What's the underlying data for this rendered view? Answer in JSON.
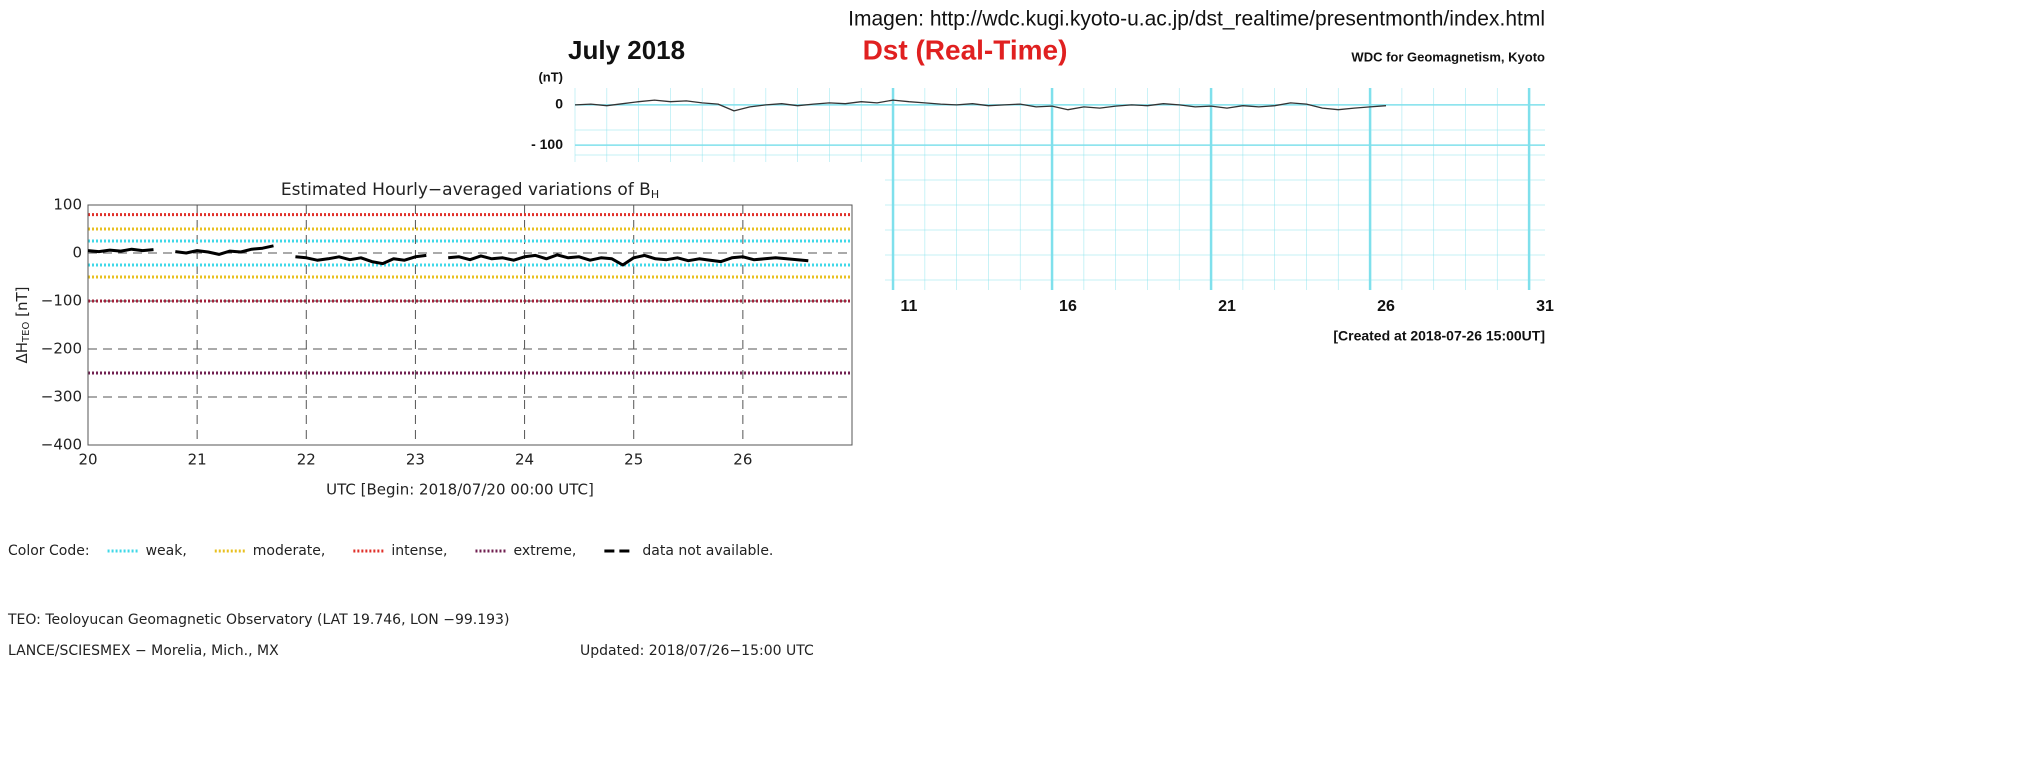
{
  "source": "Imagen: http://wdc.kugi.kyoto-u.ac.jp/dst_realtime/presentmonth/index.html",
  "chart_data": [
    {
      "type": "line",
      "title": "Dst (Real-Time)",
      "subtitle": "July  2018",
      "credit": "WDC for Geomagnetism, Kyoto",
      "ylabel": "(nT)",
      "note": "[Created at 2018-07-26 15:00UT]",
      "xlim": [
        1,
        31.5
      ],
      "xticks": [
        11,
        16,
        21,
        26,
        31
      ],
      "ylim": [
        -460,
        42
      ],
      "yticks": [
        0,
        {
          "value": -100,
          "label": "- 100"
        }
      ],
      "grid": true,
      "grid_color": "#7fe0ec",
      "series": [
        {
          "color": "#333333",
          "x": [
            1,
            1.5,
            2,
            2.5,
            3,
            3.5,
            4,
            4.5,
            5,
            5.5,
            6,
            6.5,
            7,
            7.5,
            8,
            8.5,
            9,
            9.5,
            10,
            10.5,
            11,
            11.5,
            12,
            12.5,
            13,
            13.5,
            14,
            14.5,
            15,
            15.5,
            16,
            16.5,
            17,
            17.5,
            18,
            18.5,
            19,
            19.5,
            20,
            20.5,
            21,
            21.5,
            22,
            22.5,
            23,
            23.5,
            24,
            24.5,
            25,
            25.5,
            26,
            26.5
          ],
          "values": [
            0,
            2,
            -2,
            3,
            8,
            12,
            8,
            10,
            5,
            2,
            -15,
            -5,
            0,
            3,
            -2,
            2,
            5,
            3,
            8,
            5,
            12,
            8,
            5,
            2,
            0,
            3,
            -2,
            0,
            2,
            -5,
            -3,
            -12,
            -5,
            -8,
            -3,
            0,
            -2,
            3,
            0,
            -5,
            -3,
            -8,
            -2,
            -5,
            -2,
            5,
            2,
            -8,
            -12,
            -8,
            -5,
            -2
          ]
        }
      ]
    },
    {
      "type": "line",
      "title": "Estimated Hourly−averaged variations of B",
      "title_subscript": "H",
      "ylabel": "ΔH",
      "ylabel_subscript": "TEO",
      "ylabel_unit": " [nT]",
      "xlabel": "UTC [Begin: 2018/07/20 00:00 UTC]",
      "xlim": [
        20,
        27
      ],
      "xticks": [
        20,
        21,
        22,
        23,
        24,
        25,
        26
      ],
      "ylim": [
        -400,
        100
      ],
      "yticks": [
        100,
        0,
        {
          "value": -100,
          "label": "−100"
        },
        {
          "value": -200,
          "label": "−200"
        },
        {
          "value": -300,
          "label": "−300"
        },
        {
          "value": -400,
          "label": "−400"
        }
      ],
      "grid": true,
      "reference_lines": [
        {
          "value": 80,
          "color": "#e0302a"
        },
        {
          "value": 50,
          "color": "#e8c020"
        },
        {
          "value": 25,
          "color": "#40d8e8"
        },
        {
          "value": -25,
          "color": "#40d8e8"
        },
        {
          "value": -50,
          "color": "#e8c020"
        },
        {
          "value": -100,
          "color": "#a0203a"
        },
        {
          "value": -250,
          "color": "#702050"
        }
      ],
      "legend_title": "Color Code:",
      "legend": [
        {
          "label": "weak,",
          "color": "#40d8e8"
        },
        {
          "label": "moderate,",
          "color": "#e8c020"
        },
        {
          "label": "intense,",
          "color": "#e0302a"
        },
        {
          "label": "extreme,",
          "color": "#702050"
        },
        {
          "label": "data not available.",
          "color": "#000000"
        }
      ],
      "footer": [
        "TEO: Teoloyucan Geomagnetic Observatory (LAT  19.746, LON −99.193)",
        "LANCE/SCIESMEX − Morelia, Mich., MX"
      ],
      "updated": "Updated: 2018/07/26−15:00 UTC",
      "series": [
        {
          "color": "#000000",
          "x": [
            20.0,
            20.1,
            20.2,
            20.3,
            20.4,
            20.5,
            20.6,
            20.7,
            20.8,
            20.9,
            21.0,
            21.1,
            21.2,
            21.3,
            21.4,
            21.5,
            21.6,
            21.7,
            21.8,
            21.9,
            22.0,
            22.1,
            22.2,
            22.3,
            22.4,
            22.5,
            22.6,
            22.7,
            22.8,
            22.9,
            23.0,
            23.1,
            23.2,
            23.3,
            23.4,
            23.5,
            23.6,
            23.7,
            23.8,
            23.9,
            24.0,
            24.1,
            24.2,
            24.3,
            24.4,
            24.5,
            24.6,
            24.7,
            24.8,
            24.9,
            25.0,
            25.1,
            25.2,
            25.3,
            25.4,
            25.5,
            25.6,
            25.7,
            25.8,
            25.9,
            26.0,
            26.1,
            26.2,
            26.3,
            26.4,
            26.5,
            26.6
          ],
          "values": [
            5,
            3,
            6,
            4,
            8,
            5,
            7,
            null,
            3,
            0,
            5,
            2,
            -3,
            4,
            2,
            8,
            10,
            15,
            null,
            -8,
            -10,
            -15,
            -12,
            -8,
            -14,
            -10,
            -18,
            -22,
            -12,
            -15,
            -8,
            -5,
            null,
            -10,
            -8,
            -14,
            -6,
            -12,
            -10,
            -15,
            -8,
            -5,
            -12,
            -4,
            -10,
            -8,
            -15,
            -10,
            -12,
            -25,
            -10,
            -5,
            -12,
            -14,
            -10,
            -16,
            -12,
            -15,
            -18,
            -10,
            -8,
            -14,
            -12,
            -10,
            -12,
            -14,
            -16
          ]
        }
      ]
    }
  ]
}
